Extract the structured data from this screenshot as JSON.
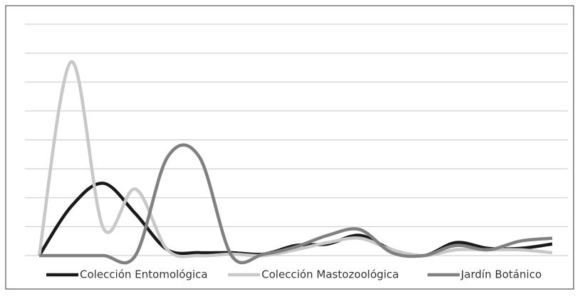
{
  "chart_data": {
    "type": "line",
    "categories": [
      null,
      null,
      null,
      null,
      null,
      null,
      null,
      null,
      null,
      null,
      null,
      null,
      null,
      null,
      null,
      null,
      null
    ],
    "ylim": [
      0,
      8
    ],
    "yticks": [
      0,
      1,
      2,
      3,
      4,
      5,
      6,
      7,
      8
    ],
    "grid": true,
    "series": [
      {
        "name": "Colección Entomológica",
        "color": "#1a1a1a",
        "values": [
          0,
          1.7,
          2.5,
          1.45,
          0.2,
          0.1,
          0.1,
          0.05,
          0.35,
          0.4,
          0.7,
          0.2,
          0,
          0.45,
          0.25,
          0.25,
          0.4
        ]
      },
      {
        "name": "Colección Mastozoológica",
        "color": "#c8c8c8",
        "values": [
          0,
          6.7,
          0.95,
          2.3,
          0.2,
          0,
          0.05,
          0,
          0.2,
          0.45,
          0.6,
          0.2,
          0,
          0.2,
          0.2,
          0.2,
          0.1
        ]
      },
      {
        "name": "Jardín Botánico",
        "color": "#808080",
        "values": [
          0,
          0,
          0,
          0,
          3.4,
          3.4,
          0,
          0.05,
          0.3,
          0.7,
          0.9,
          0.1,
          0,
          0.35,
          0.2,
          0.5,
          0.6
        ]
      }
    ]
  }
}
